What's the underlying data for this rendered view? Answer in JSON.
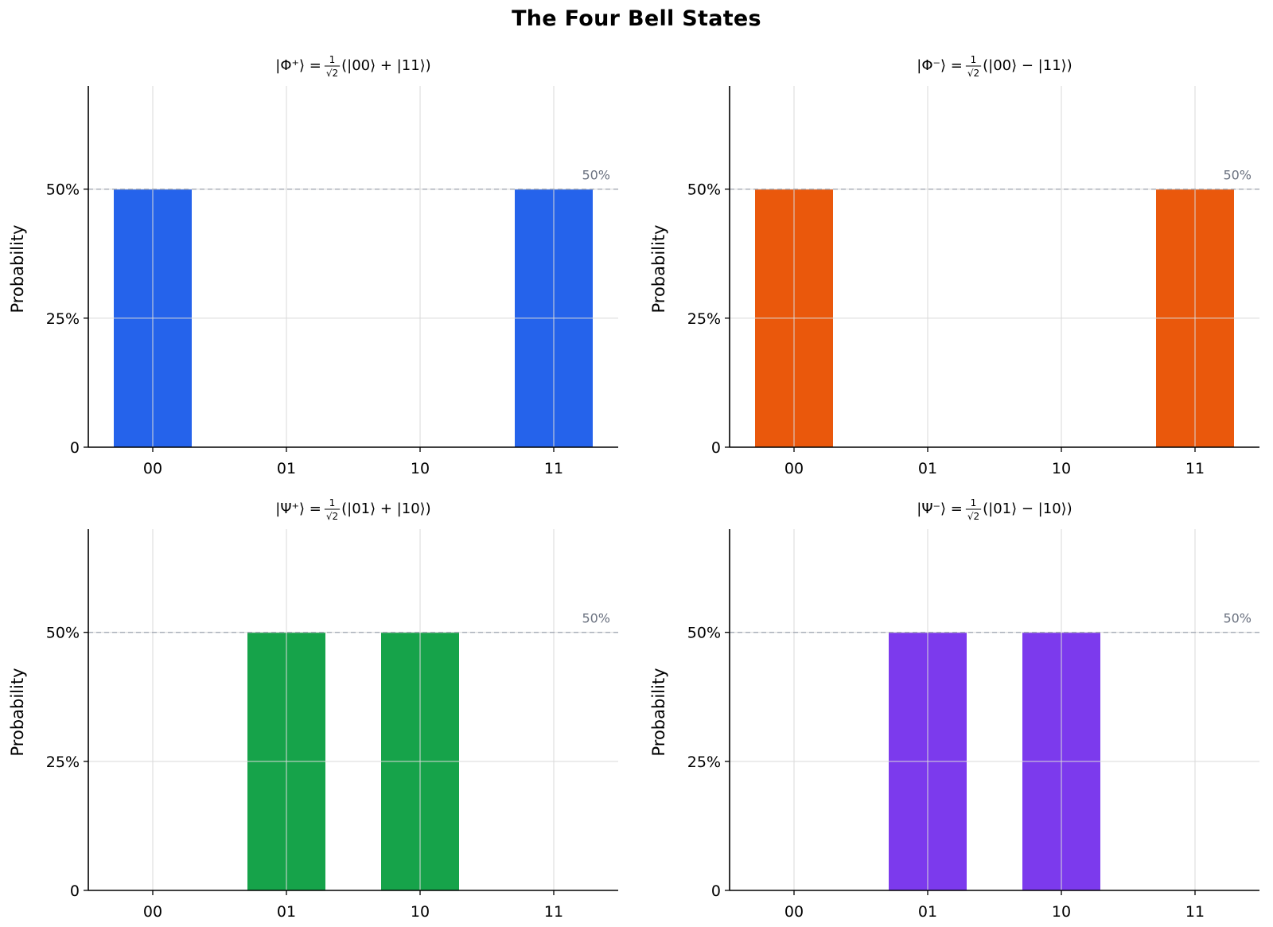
{
  "figure_title": "The Four Bell States",
  "chart_data": [
    {
      "type": "bar",
      "title": {
        "prefix": "|Φ⁺⟩ =",
        "frac_num": "1",
        "frac_den": "√2",
        "suffix": "(|00⟩ + |11⟩)"
      },
      "ylabel": "Probability",
      "categories": [
        "00",
        "01",
        "10",
        "11"
      ],
      "values": [
        0.5,
        0,
        0,
        0.5
      ],
      "color": "#2563eb",
      "ylim": [
        0,
        0.7
      ],
      "yticks": [
        0,
        0.25,
        0.5
      ],
      "ytick_labels": [
        "0",
        "25%",
        "50%"
      ],
      "reference_line": {
        "value": 0.5,
        "label": "50%"
      },
      "grid": true
    },
    {
      "type": "bar",
      "title": {
        "prefix": "|Φ⁻⟩ =",
        "frac_num": "1",
        "frac_den": "√2",
        "suffix": "(|00⟩ − |11⟩)"
      },
      "ylabel": "Probability",
      "categories": [
        "00",
        "01",
        "10",
        "11"
      ],
      "values": [
        0.5,
        0,
        0,
        0.5
      ],
      "color": "#ea580c",
      "ylim": [
        0,
        0.7
      ],
      "yticks": [
        0,
        0.25,
        0.5
      ],
      "ytick_labels": [
        "0",
        "25%",
        "50%"
      ],
      "reference_line": {
        "value": 0.5,
        "label": "50%"
      },
      "grid": true
    },
    {
      "type": "bar",
      "title": {
        "prefix": "|Ψ⁺⟩ =",
        "frac_num": "1",
        "frac_den": "√2",
        "suffix": "(|01⟩ + |10⟩)"
      },
      "ylabel": "Probability",
      "categories": [
        "00",
        "01",
        "10",
        "11"
      ],
      "values": [
        0,
        0.5,
        0.5,
        0
      ],
      "color": "#16a34a",
      "ylim": [
        0,
        0.7
      ],
      "yticks": [
        0,
        0.25,
        0.5
      ],
      "ytick_labels": [
        "0",
        "25%",
        "50%"
      ],
      "reference_line": {
        "value": 0.5,
        "label": "50%"
      },
      "grid": true
    },
    {
      "type": "bar",
      "title": {
        "prefix": "|Ψ⁻⟩ =",
        "frac_num": "1",
        "frac_den": "√2",
        "suffix": "(|01⟩ − |10⟩)"
      },
      "ylabel": "Probability",
      "categories": [
        "00",
        "01",
        "10",
        "11"
      ],
      "values": [
        0,
        0.5,
        0.5,
        0
      ],
      "color": "#7c3aed",
      "ylim": [
        0,
        0.7
      ],
      "yticks": [
        0,
        0.25,
        0.5
      ],
      "ytick_labels": [
        "0",
        "25%",
        "50%"
      ],
      "reference_line": {
        "value": 0.5,
        "label": "50%"
      },
      "grid": true
    }
  ]
}
